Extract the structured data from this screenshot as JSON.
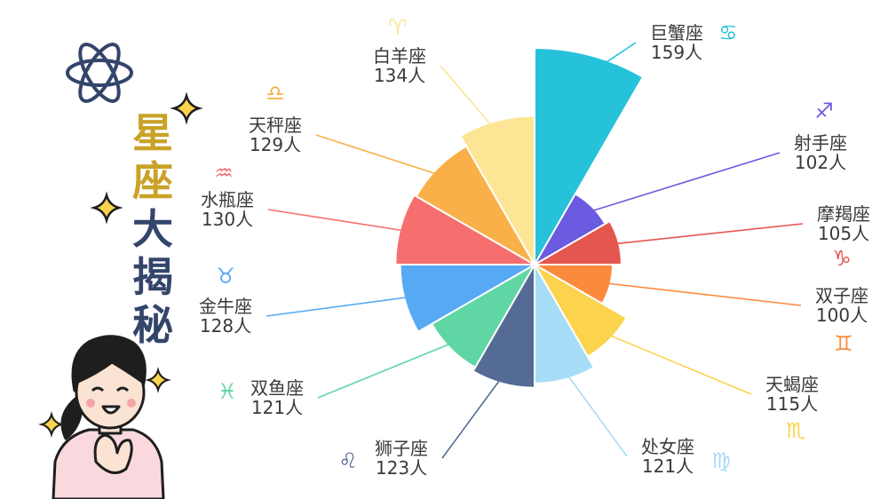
{
  "title": [
    "星",
    "座",
    "大",
    "揭",
    "秘"
  ],
  "colors": {
    "title_gold": "#c9a227",
    "title_navy": "#34456b",
    "leader_default": "#9aa6b8"
  },
  "chart_data": {
    "type": "pie",
    "variant": "polar-area",
    "unit": "人",
    "slices": [
      {
        "name": "巨蟹座",
        "value": 159,
        "color": "#26c2da",
        "glyph": "♋"
      },
      {
        "name": "射手座",
        "value": 102,
        "color": "#6a5be0",
        "glyph": "♐"
      },
      {
        "name": "摩羯座",
        "value": 105,
        "color": "#e4564f",
        "glyph": "♑"
      },
      {
        "name": "双子座",
        "value": 100,
        "color": "#fb8a3c",
        "glyph": "♊"
      },
      {
        "name": "天蝎座",
        "value": 115,
        "color": "#fcd34d",
        "glyph": "♏"
      },
      {
        "name": "处女座",
        "value": 121,
        "color": "#a6dcf6",
        "glyph": "♍"
      },
      {
        "name": "狮子座",
        "value": 123,
        "color": "#546b96",
        "glyph": "♌"
      },
      {
        "name": "双鱼座",
        "value": 121,
        "color": "#5fd6a4",
        "glyph": "♓"
      },
      {
        "name": "金牛座",
        "value": 128,
        "color": "#58a9f4",
        "glyph": "♉"
      },
      {
        "name": "水瓶座",
        "value": 130,
        "color": "#f76e6e",
        "glyph": "♒"
      },
      {
        "name": "天秤座",
        "value": 129,
        "color": "#f9b048",
        "glyph": "♎"
      },
      {
        "name": "白羊座",
        "value": 134,
        "color": "#fce595",
        "glyph": "♈"
      }
    ]
  }
}
